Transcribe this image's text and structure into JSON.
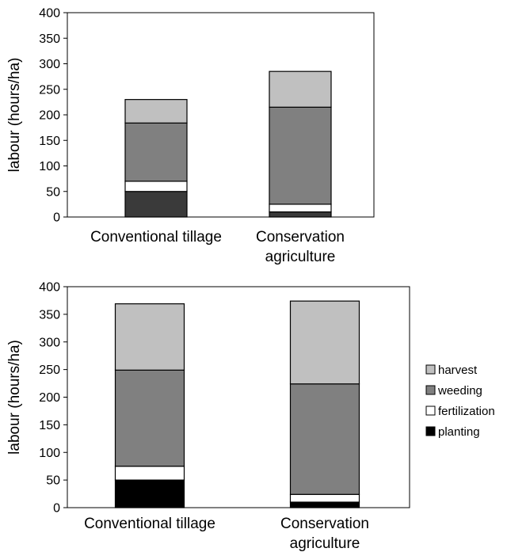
{
  "chart_data": [
    {
      "type": "bar",
      "stacked": true,
      "ylabel": "labour (hours/ha)",
      "ylim": [
        0,
        400
      ],
      "yticks": [
        0,
        50,
        100,
        150,
        200,
        250,
        300,
        350,
        400
      ],
      "ytick_labels": [
        "0",
        "50",
        "100",
        "150",
        "200",
        "250",
        "300",
        "350",
        "400"
      ],
      "categories": [
        [
          "Conventional tillage"
        ],
        [
          "Conservation",
          "agriculture"
        ]
      ],
      "grid": false,
      "series": [
        {
          "name": "planting",
          "values": [
            50,
            10
          ],
          "color": "#3a3a3a"
        },
        {
          "name": "fertilization",
          "values": [
            20,
            15
          ],
          "color": "#ffffff"
        },
        {
          "name": "weeding",
          "values": [
            114,
            190
          ],
          "color": "#808080"
        },
        {
          "name": "harvest",
          "values": [
            46,
            70
          ],
          "color": "#c0c0c0"
        }
      ]
    },
    {
      "type": "bar",
      "stacked": true,
      "ylabel": "labour (hours/ha)",
      "ylim": [
        0,
        400
      ],
      "yticks": [
        0,
        50,
        100,
        150,
        200,
        250,
        300,
        350,
        400
      ],
      "ytick_labels": [
        "0",
        "50",
        "100",
        "150",
        "200",
        "250",
        "300",
        "350",
        "400"
      ],
      "categories": [
        [
          "Conventional tillage"
        ],
        [
          "Conservation",
          "agriculture"
        ]
      ],
      "grid": false,
      "legend_position": "right",
      "series": [
        {
          "name": "planting",
          "values": [
            50,
            10
          ],
          "color": "#000000"
        },
        {
          "name": "fertilization",
          "values": [
            25,
            14
          ],
          "color": "#ffffff"
        },
        {
          "name": "weeding",
          "values": [
            174,
            200
          ],
          "color": "#808080"
        },
        {
          "name": "harvest",
          "values": [
            120,
            150
          ],
          "color": "#c0c0c0"
        }
      ],
      "legend": [
        "harvest",
        "weeding",
        "fertilization",
        "planting"
      ]
    }
  ]
}
